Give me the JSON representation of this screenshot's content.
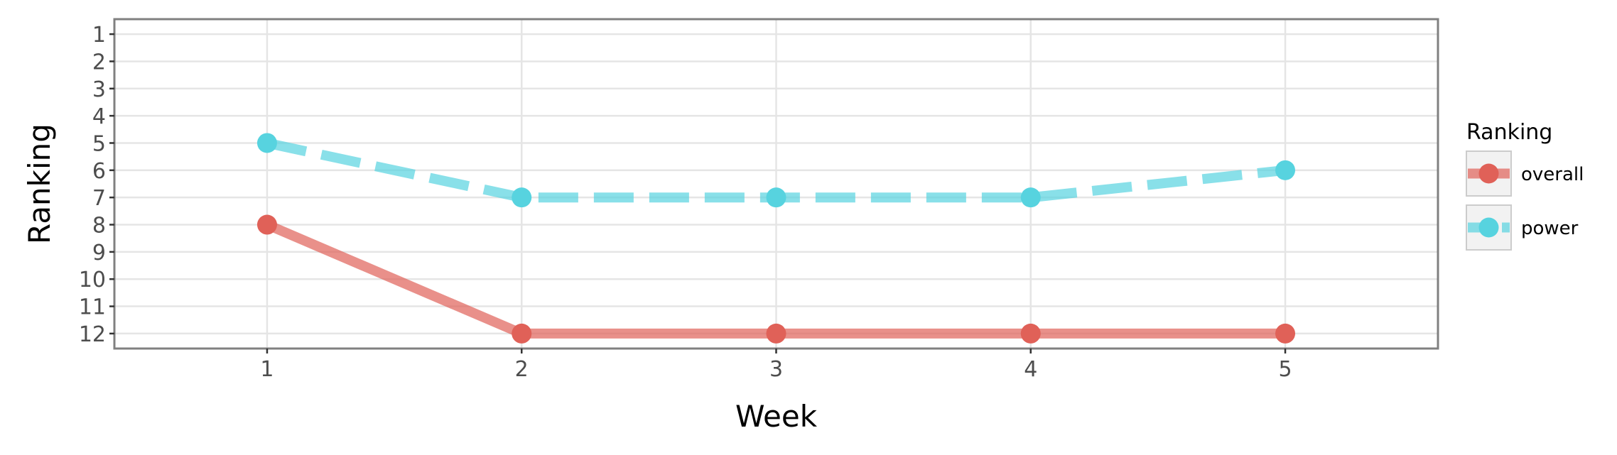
{
  "chart_data": {
    "type": "line",
    "xlabel": "Week",
    "ylabel": "Ranking",
    "x": [
      1,
      2,
      3,
      4,
      5
    ],
    "xticks": [
      "1",
      "2",
      "3",
      "4",
      "5"
    ],
    "xlim": [
      0.4,
      5.6
    ],
    "ylim": [
      12.55,
      0.45
    ],
    "y_reversed": true,
    "yticks": [
      "1",
      "2",
      "3",
      "4",
      "5",
      "6",
      "7",
      "8",
      "9",
      "10",
      "11",
      "12"
    ],
    "grid": true,
    "legend": {
      "title": "Ranking",
      "position": "right"
    },
    "series": [
      {
        "name": "overall",
        "values": [
          8,
          12,
          12,
          12,
          12
        ],
        "color": "#e06158",
        "linestyle": "solid"
      },
      {
        "name": "power",
        "values": [
          5,
          7,
          7,
          7,
          6
        ],
        "color": "#57d3df",
        "linestyle": "dashed"
      }
    ]
  }
}
